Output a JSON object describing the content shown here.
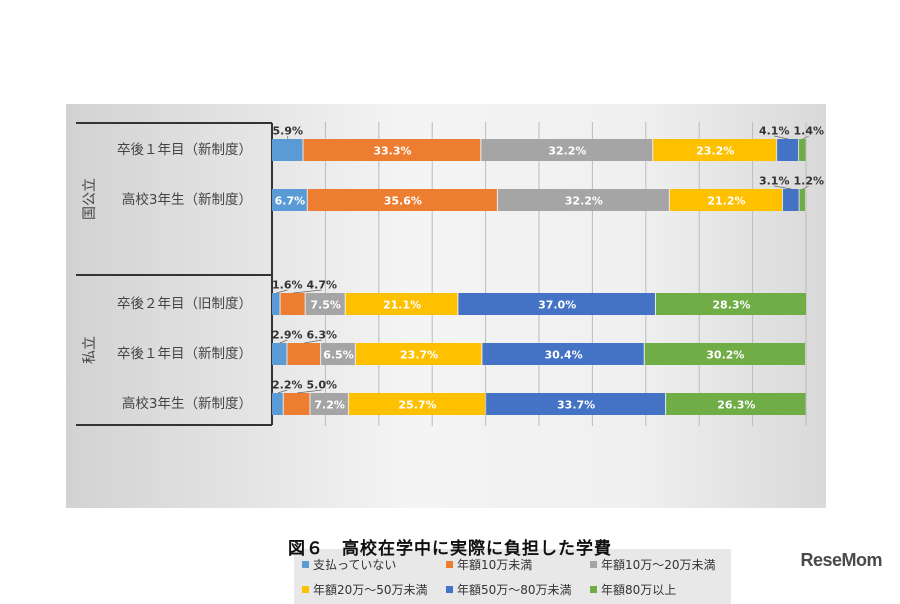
{
  "chart_data": {
    "type": "bar",
    "orientation": "horizontal-stacked-100",
    "title": "図６　高校在学中に実際に負担した学費",
    "groups": [
      {
        "name": "国公立",
        "categories": [
          "卒後１年目（新制度）",
          "高校3年生（新制度）"
        ]
      },
      {
        "name": "私立",
        "categories": [
          "卒後２年目（旧制度）",
          "卒後１年目（新制度）",
          "高校3年生（新制度）"
        ]
      }
    ],
    "series": [
      {
        "name": "支払っていない",
        "color": "#5b9bd5",
        "values": [
          5.9,
          6.7,
          1.6,
          2.9,
          2.2
        ]
      },
      {
        "name": "年額10万未満",
        "color": "#ed7d31",
        "values": [
          33.3,
          35.6,
          4.7,
          6.3,
          5.0
        ]
      },
      {
        "name": "年額10万～20万未満",
        "color": "#a5a5a5",
        "values": [
          32.2,
          32.2,
          7.5,
          6.5,
          7.2
        ]
      },
      {
        "name": "年額20万～50万未満",
        "color": "#ffc000",
        "values": [
          23.2,
          21.2,
          21.1,
          23.7,
          25.7
        ]
      },
      {
        "name": "年額50万～80万未満",
        "color": "#4472c4",
        "values": [
          4.1,
          3.1,
          37.0,
          30.4,
          33.7
        ]
      },
      {
        "name": "年額80万以上",
        "color": "#70ad47",
        "values": [
          1.4,
          1.2,
          28.3,
          30.2,
          26.3
        ]
      }
    ],
    "xlim": [
      0,
      100
    ],
    "grid": true,
    "legend_position": "bottom"
  },
  "logo": "ReseMom"
}
